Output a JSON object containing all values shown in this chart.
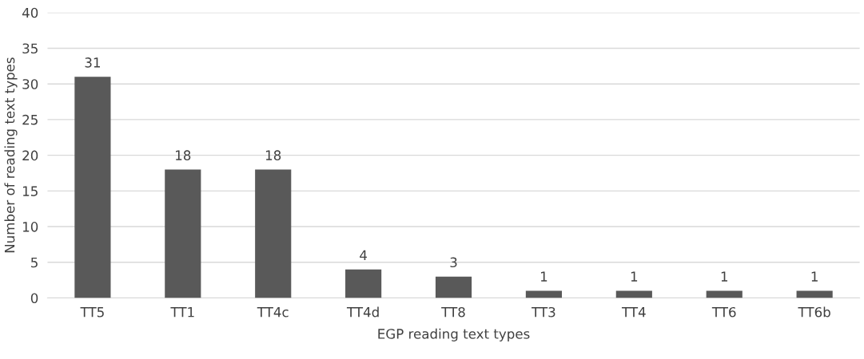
{
  "chart_data": {
    "type": "bar",
    "xlabel": "EGP reading text types",
    "ylabel": "Number of reading text types",
    "categories": [
      "TT5",
      "TT1",
      "TT4c",
      "TT4d",
      "TT8",
      "TT3",
      "TT4",
      "TT6",
      "TT6b"
    ],
    "values": [
      31,
      18,
      18,
      4,
      3,
      1,
      1,
      1,
      1
    ],
    "color": "#595959",
    "ylim": [
      0,
      40
    ],
    "yticks": [
      0,
      5,
      10,
      15,
      20,
      25,
      30,
      35,
      40
    ],
    "grid": "y",
    "data_labels": true
  }
}
